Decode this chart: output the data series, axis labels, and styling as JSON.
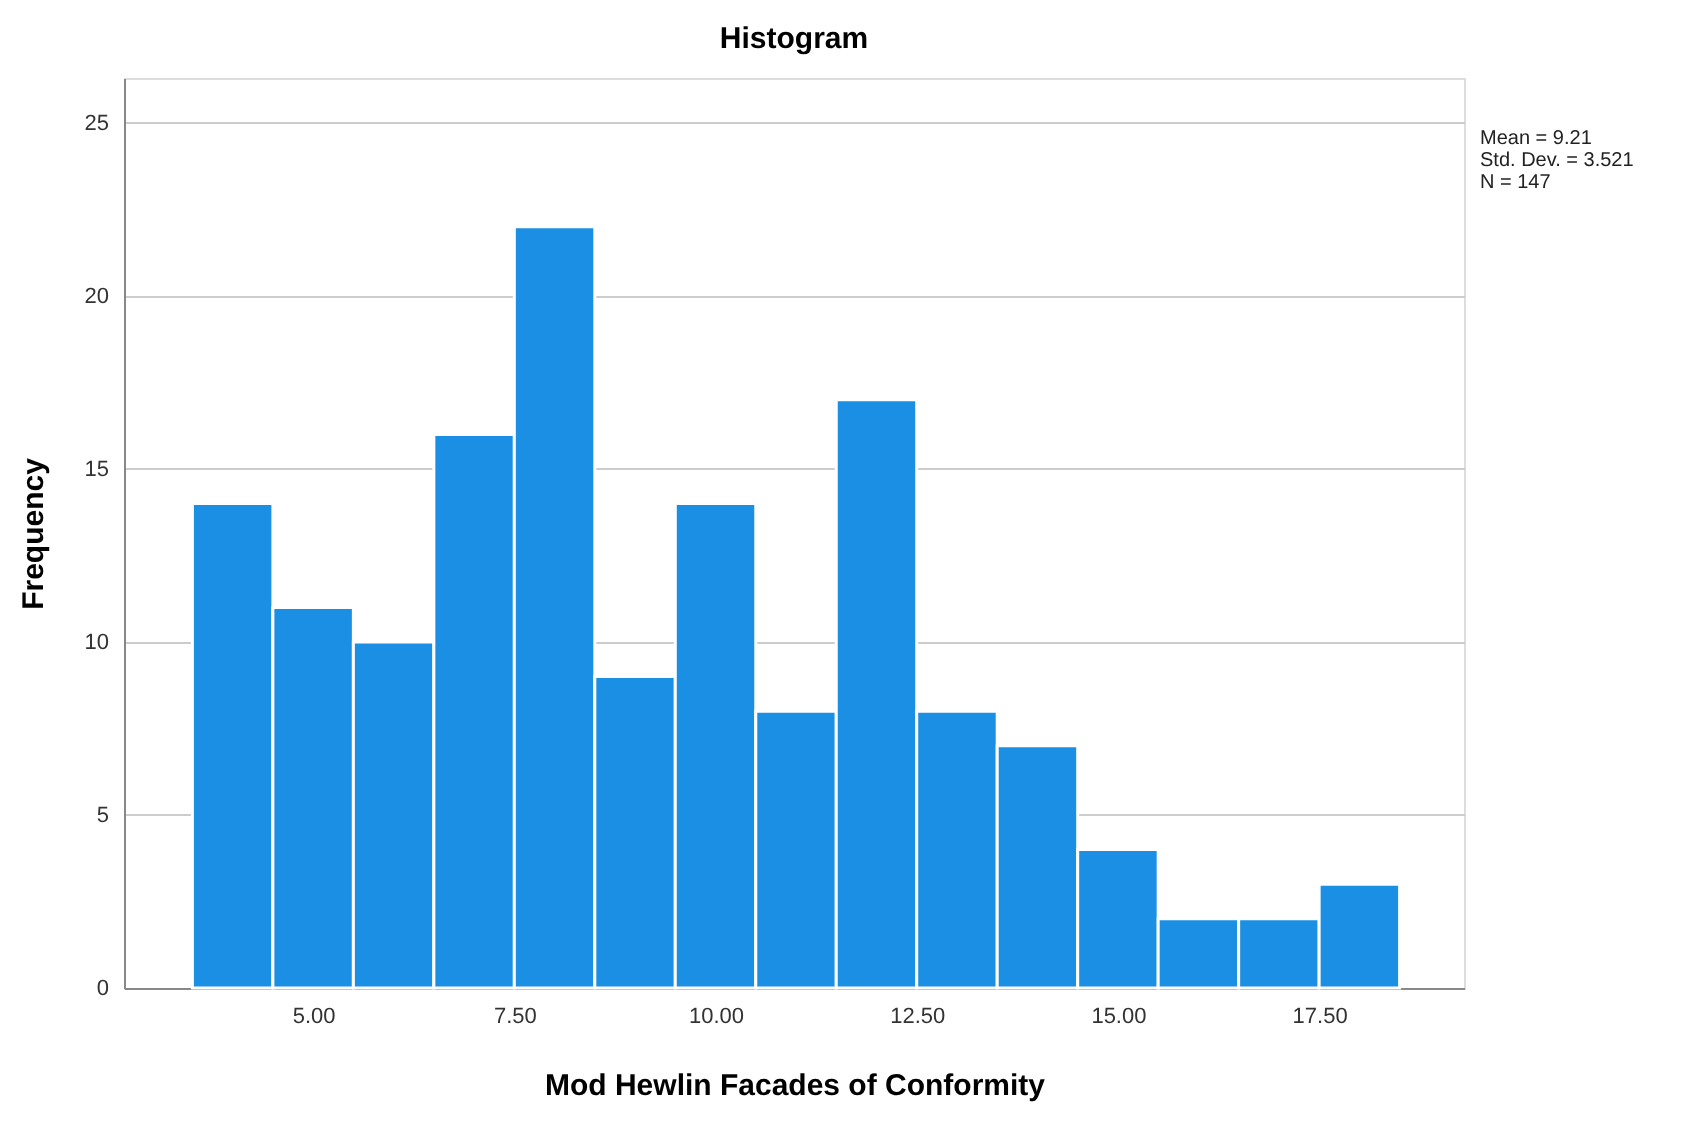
{
  "chart_data": {
    "type": "histogram",
    "title": "Histogram",
    "xlabel": "Mod Hewlin Facades of Conformity",
    "ylabel": "Frequency",
    "bins": [
      3.5,
      4.5,
      5.5,
      6.5,
      7.5,
      8.5,
      9.5,
      10.5,
      11.5,
      12.5,
      13.5,
      14.5,
      15.5,
      16.5,
      17.5,
      18.5
    ],
    "values": [
      14,
      11,
      10,
      16,
      22,
      9,
      14,
      8,
      17,
      8,
      7,
      4,
      2,
      2,
      3
    ],
    "color": "#1a8fe3",
    "xlim": [
      2.65,
      19.3
    ],
    "ylim": [
      0,
      26.3
    ],
    "xticks": [
      {
        "value": 5,
        "label": "5.00"
      },
      {
        "value": 7.5,
        "label": "7.50"
      },
      {
        "value": 10,
        "label": "10.00"
      },
      {
        "value": 12.5,
        "label": "12.50"
      },
      {
        "value": 15,
        "label": "15.00"
      },
      {
        "value": 17.5,
        "label": "17.50"
      }
    ],
    "yticks": [
      0,
      5,
      10,
      15,
      20,
      25
    ],
    "grid": "y",
    "annotations": [
      "Mean = 9.21",
      "Std. Dev. = 3.521",
      "N = 147"
    ]
  }
}
